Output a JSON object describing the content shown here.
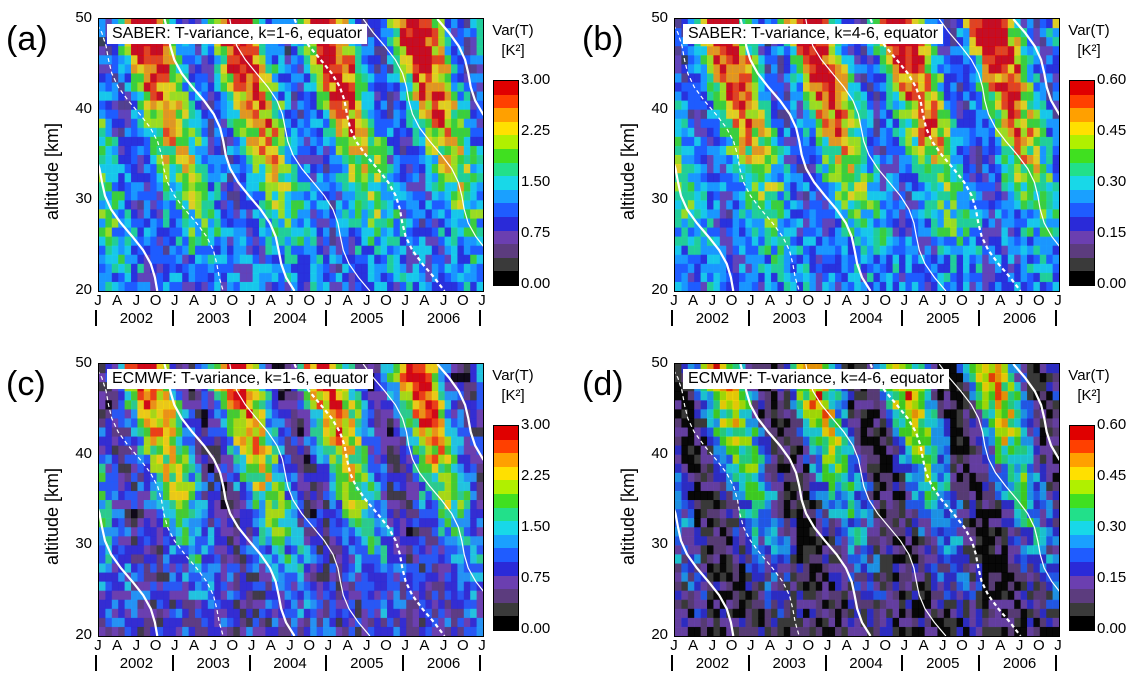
{
  "chart_data": [
    {
      "type": "heatmap",
      "panel_label": "(a)",
      "title": "SABER: T-variance, k=1-6, equator",
      "ylabel": "altitude [km]",
      "ylim": [
        20,
        50
      ],
      "yticks": [
        "20",
        "30",
        "40",
        "50"
      ],
      "xlim": [
        "2002-01",
        "2007-01"
      ],
      "month_ticks": [
        "J",
        "A",
        "J",
        "O",
        "J",
        "A",
        "J",
        "O",
        "J",
        "A",
        "J",
        "O",
        "J",
        "A",
        "J",
        "O",
        "J",
        "A",
        "J",
        "O",
        "J"
      ],
      "years": [
        "2002",
        "2003",
        "2004",
        "2005",
        "2006"
      ],
      "colorbar": {
        "title_line1": "Var(T)",
        "title_line2": "[K²]",
        "ticks": [
          "0.00",
          "0.75",
          "1.50",
          "2.25",
          "3.00"
        ],
        "range": [
          0,
          3.0
        ]
      },
      "background": "blue"
    },
    {
      "type": "heatmap",
      "panel_label": "(b)",
      "title": "SABER: T-variance, k=4-6, equator",
      "ylabel": "altitude [km]",
      "ylim": [
        20,
        50
      ],
      "yticks": [
        "20",
        "30",
        "40",
        "50"
      ],
      "xlim": [
        "2002-01",
        "2007-01"
      ],
      "month_ticks": [
        "J",
        "A",
        "J",
        "O",
        "J",
        "A",
        "J",
        "O",
        "J",
        "A",
        "J",
        "O",
        "J",
        "A",
        "J",
        "O",
        "J",
        "A",
        "J",
        "O",
        "J"
      ],
      "years": [
        "2002",
        "2003",
        "2004",
        "2005",
        "2006"
      ],
      "colorbar": {
        "title_line1": "Var(T)",
        "title_line2": "[K²]",
        "ticks": [
          "0.00",
          "0.15",
          "0.30",
          "0.45",
          "0.60"
        ],
        "range": [
          0,
          0.6
        ]
      },
      "background": "blue"
    },
    {
      "type": "heatmap",
      "panel_label": "(c)",
      "title": "ECMWF: T-variance, k=1-6, equator",
      "ylabel": "altitude [km]",
      "ylim": [
        20,
        50
      ],
      "yticks": [
        "20",
        "30",
        "40",
        "50"
      ],
      "xlim": [
        "2002-01",
        "2007-01"
      ],
      "month_ticks": [
        "J",
        "A",
        "J",
        "O",
        "J",
        "A",
        "J",
        "O",
        "J",
        "A",
        "J",
        "O",
        "J",
        "A",
        "J",
        "O",
        "J",
        "A",
        "J",
        "O",
        "J"
      ],
      "years": [
        "2002",
        "2003",
        "2004",
        "2005",
        "2006"
      ],
      "colorbar": {
        "title_line1": "Var(T)",
        "title_line2": "[K²]",
        "ticks": [
          "0.00",
          "0.75",
          "1.50",
          "2.25",
          "3.00"
        ],
        "range": [
          0,
          3.0
        ]
      },
      "background": "purple"
    },
    {
      "type": "heatmap",
      "panel_label": "(d)",
      "title": "ECMWF: T-variance, k=4-6, equator",
      "ylabel": "altitude [km]",
      "ylim": [
        20,
        50
      ],
      "yticks": [
        "20",
        "30",
        "40",
        "50"
      ],
      "xlim": [
        "2002-01",
        "2007-01"
      ],
      "month_ticks": [
        "J",
        "A",
        "J",
        "O",
        "J",
        "A",
        "J",
        "O",
        "J",
        "A",
        "J",
        "O",
        "J",
        "A",
        "J",
        "O",
        "J",
        "A",
        "J",
        "O",
        "J"
      ],
      "years": [
        "2002",
        "2003",
        "2004",
        "2005",
        "2006"
      ],
      "colorbar": {
        "title_line1": "Var(T)",
        "title_line2": "[K²]",
        "ticks": [
          "0.00",
          "0.15",
          "0.30",
          "0.45",
          "0.60"
        ],
        "range": [
          0,
          0.6
        ]
      },
      "background": "dark"
    }
  ],
  "colors": {
    "scale": [
      "#000000",
      "#3a3a3a",
      "#5c3c7e",
      "#6b3fb0",
      "#2a2ad8",
      "#1f5cff",
      "#1aa0ff",
      "#18d8e8",
      "#22e08a",
      "#40e020",
      "#b0f000",
      "#ffe000",
      "#ffa000",
      "#ff4000",
      "#e00000"
    ],
    "contour_solid": "#ffffff",
    "contour_dashed": "#ffffff"
  }
}
